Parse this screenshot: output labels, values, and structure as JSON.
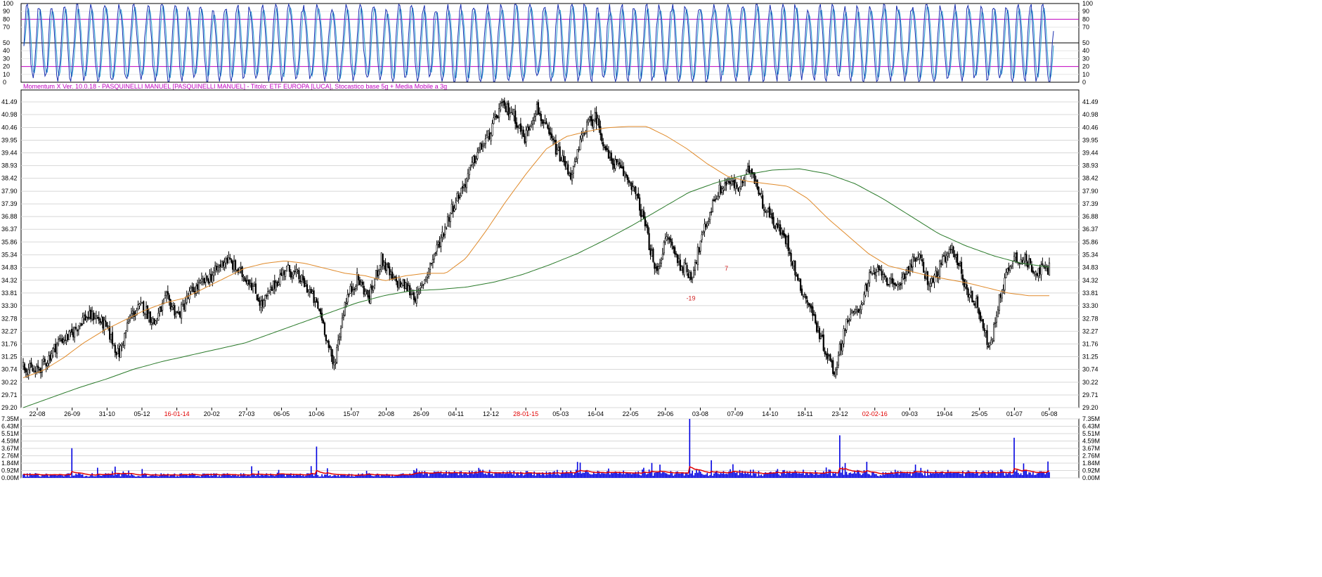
{
  "header": {
    "text": "Momentum X  Ver. 10.0.18  -  PASQUINELLI MANUEL  [PASQUINELLI MANUEL] - Titolo: ETF EUROPA  [LUCA],   Stocastico base 5g + Media Mobile a 3g"
  },
  "colors": {
    "candle": "#000000",
    "ma_orange": "#e08a2a",
    "ma_green": "#2a7a2a",
    "stoch_k": "#1a2fb0",
    "stoch_d": "#2aa0d0",
    "stoch_level": "#c000c0",
    "volume": "#0000e0",
    "volume_ma": "#e00000",
    "date_red": "#e00000"
  },
  "chart_data": [
    {
      "type": "line",
      "name": "stochastic",
      "y_ticks": [
        "100",
        "90",
        "80",
        "70",
        "50",
        "40",
        "30",
        "20",
        "10",
        "0"
      ],
      "ylim": [
        0,
        100
      ],
      "levels": [
        20,
        50,
        80
      ],
      "cycle_count": 78,
      "first_value": 46,
      "last_value": 65
    },
    {
      "type": "candlestick",
      "name": "price",
      "y_ticks": [
        "41.49",
        "40.98",
        "40.46",
        "39.95",
        "39.44",
        "38.93",
        "38.42",
        "37.90",
        "37.39",
        "36.88",
        "36.37",
        "35.86",
        "35.34",
        "34.83",
        "34.32",
        "33.81",
        "33.30",
        "32.78",
        "32.27",
        "31.76",
        "31.25",
        "30.74",
        "30.22",
        "29.71",
        "29.20"
      ],
      "ylim": [
        29.2,
        41.49
      ],
      "x_labels": [
        {
          "label": "22-08",
          "red": false
        },
        {
          "label": "26-09",
          "red": false
        },
        {
          "label": "31-10",
          "red": false
        },
        {
          "label": "05-12",
          "red": false
        },
        {
          "label": "16-01-14",
          "red": true
        },
        {
          "label": "20-02",
          "red": false
        },
        {
          "label": "27-03",
          "red": false
        },
        {
          "label": "06-05",
          "red": false
        },
        {
          "label": "10-06",
          "red": false
        },
        {
          "label": "15-07",
          "red": false
        },
        {
          "label": "20-08",
          "red": false
        },
        {
          "label": "26-09",
          "red": false
        },
        {
          "label": "04-11",
          "red": false
        },
        {
          "label": "12-12",
          "red": false
        },
        {
          "label": "28-01-15",
          "red": true
        },
        {
          "label": "05-03",
          "red": false
        },
        {
          "label": "16-04",
          "red": false
        },
        {
          "label": "22-05",
          "red": false
        },
        {
          "label": "29-06",
          "red": false
        },
        {
          "label": "03-08",
          "red": false
        },
        {
          "label": "07-09",
          "red": false
        },
        {
          "label": "14-10",
          "red": false
        },
        {
          "label": "18-11",
          "red": false
        },
        {
          "label": "23-12",
          "red": false
        },
        {
          "label": "02-02-16",
          "red": true
        },
        {
          "label": "09-03",
          "red": false
        },
        {
          "label": "19-04",
          "red": false
        },
        {
          "label": "25-05",
          "red": false
        },
        {
          "label": "01-07",
          "red": false
        },
        {
          "label": "05-08",
          "red": false
        }
      ],
      "close_anchors": [
        30.9,
        30.6,
        31.1,
        31.9,
        32.1,
        32.8,
        32.9,
        32.4,
        31.3,
        32.9,
        33.3,
        32.6,
        33.6,
        32.9,
        33.8,
        34.2,
        34.6,
        35.2,
        34.7,
        34.3,
        33.3,
        34.1,
        34.8,
        34.5,
        33.9,
        32.9,
        30.8,
        33.5,
        34.4,
        33.6,
        35.2,
        34.3,
        34.1,
        33.6,
        34.8,
        36.0,
        37.3,
        38.2,
        39.4,
        40.1,
        41.3,
        41.1,
        40.0,
        41.3,
        40.2,
        39.3,
        38.5,
        40.4,
        40.9,
        39.3,
        38.8,
        38.2,
        36.8,
        34.6,
        36.1,
        35.0,
        34.5,
        36.2,
        37.7,
        38.3,
        38.0,
        38.9,
        37.4,
        36.6,
        35.9,
        34.2,
        33.2,
        31.8,
        30.6,
        32.7,
        33.1,
        34.5,
        34.7,
        33.9,
        34.7,
        35.3,
        34.1,
        35.0,
        35.6,
        34.0,
        33.3,
        31.5,
        34.0,
        35.3,
        35.1,
        34.7,
        34.8
      ],
      "ma_orange_anchors": [
        30.4,
        30.7,
        31.2,
        31.8,
        32.3,
        32.7,
        33.1,
        33.4,
        33.6,
        34.0,
        34.4,
        34.8,
        35.0,
        35.1,
        35.0,
        34.8,
        34.6,
        34.5,
        34.3,
        34.5,
        34.6,
        34.6,
        35.2,
        36.3,
        37.5,
        38.6,
        39.6,
        40.1,
        40.3,
        40.45,
        40.5,
        40.5,
        40.1,
        39.6,
        39.0,
        38.5,
        38.3,
        38.2,
        38.1,
        37.6,
        36.8,
        36.1,
        35.4,
        34.9,
        34.7,
        34.5,
        34.35,
        34.2,
        34.0,
        33.8,
        33.7,
        33.7
      ],
      "ma_green_anchors": [
        29.2,
        29.6,
        30.0,
        30.35,
        30.75,
        31.05,
        31.3,
        31.55,
        31.8,
        32.2,
        32.6,
        33.0,
        33.4,
        33.7,
        33.9,
        33.95,
        34.05,
        34.25,
        34.55,
        34.95,
        35.4,
        35.95,
        36.55,
        37.2,
        37.85,
        38.25,
        38.55,
        38.75,
        38.8,
        38.6,
        38.2,
        37.6,
        36.9,
        36.2,
        35.7,
        35.3,
        35.0,
        34.85
      ],
      "annotations": [
        {
          "label": "-19",
          "x_label": "03-08",
          "y": 33.6
        },
        {
          "label": "7",
          "x_label": "07-09",
          "y": 34.8
        }
      ]
    },
    {
      "type": "bar",
      "name": "volume",
      "y_ticks": [
        "7.35M",
        "6.43M",
        "5.51M",
        "4.59M",
        "3.67M",
        "2.76M",
        "1.84M",
        "0.92M",
        "0.00M"
      ],
      "ylim": [
        0,
        7.35
      ],
      "spikes": [
        {
          "near_label": "10-06",
          "value": 3.9
        },
        {
          "near_label": "26-09",
          "value": 3.7
        },
        {
          "near_label": "03-08",
          "value": 7.35
        },
        {
          "near_label": "23-12",
          "value": 5.3
        },
        {
          "near_label": "01-07",
          "value": 5.0
        }
      ]
    }
  ]
}
